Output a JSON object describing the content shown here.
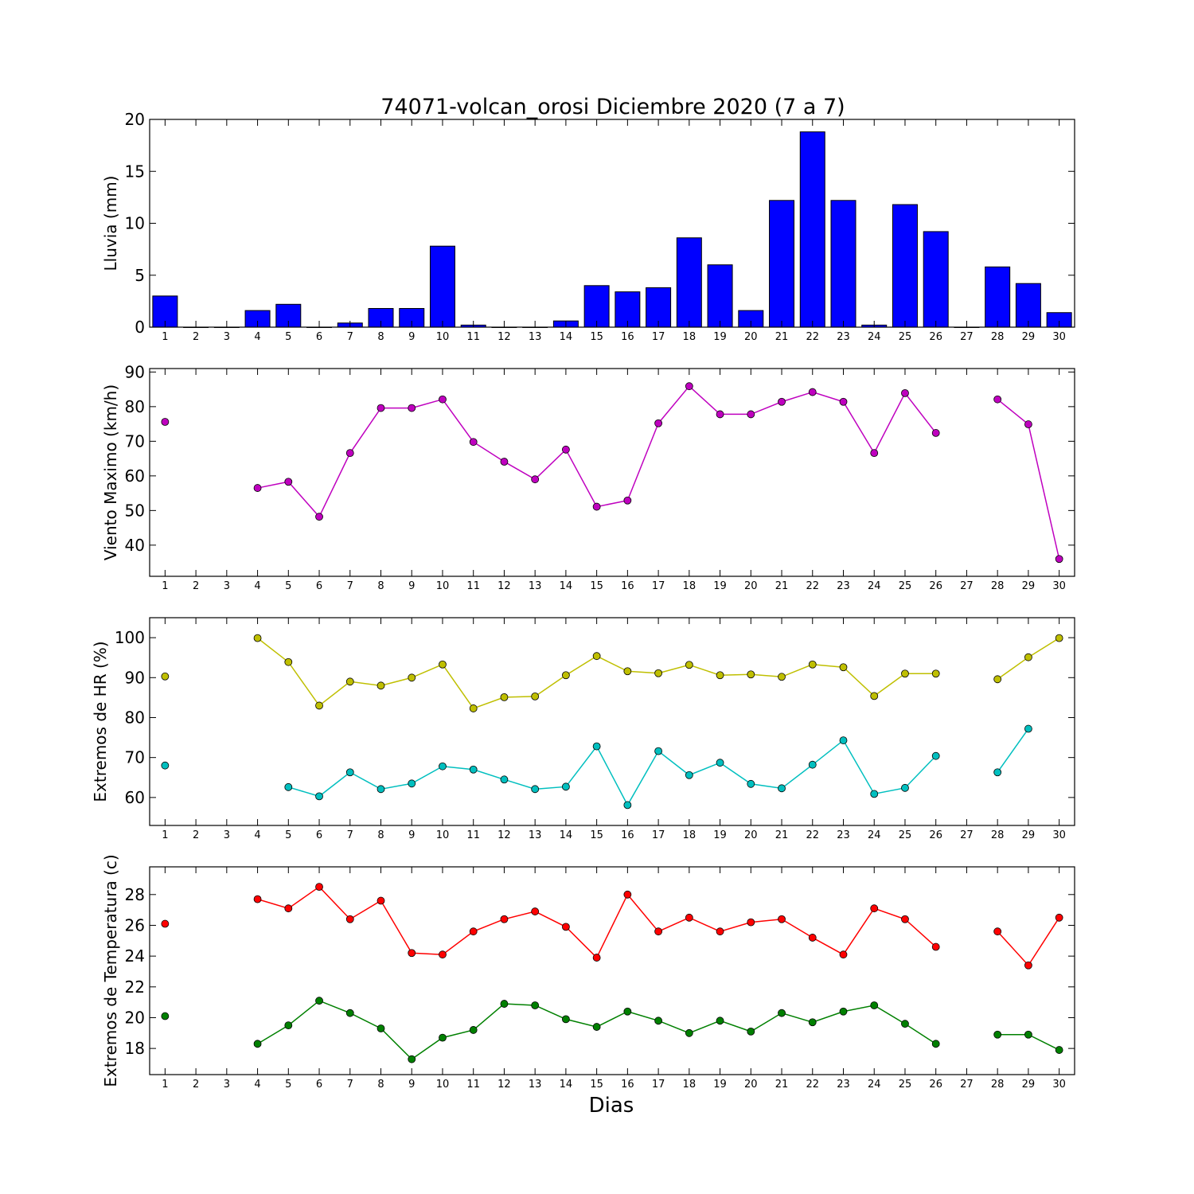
{
  "title": "74071-volcan_orosi Diciembre 2020  (7 a 7)",
  "xlabel": "Dias",
  "x_tick_labels": [
    "1",
    "2",
    "3",
    "4",
    "5",
    "6",
    "7",
    "8",
    "9",
    "10",
    "11",
    "12",
    "13",
    "14",
    "15",
    "16",
    "17",
    "18",
    "19",
    "20",
    "21",
    "22",
    "23",
    "24",
    "25",
    "26",
    "27",
    "28",
    "29",
    "30"
  ],
  "chart_data": [
    {
      "type": "bar",
      "ylabel": "Lluvia (mm)",
      "ylim": [
        0,
        20
      ],
      "yticks": [
        0,
        5,
        10,
        15,
        20
      ],
      "x": [
        1,
        2,
        3,
        4,
        5,
        6,
        7,
        8,
        9,
        10,
        11,
        12,
        13,
        14,
        15,
        16,
        17,
        18,
        19,
        20,
        21,
        22,
        23,
        24,
        25,
        26,
        27,
        28,
        29,
        30
      ],
      "series": [
        {
          "color": "#0000ff",
          "values": [
            3.0,
            0,
            0,
            1.6,
            2.2,
            0,
            0.4,
            1.8,
            1.8,
            7.8,
            0.2,
            0,
            0,
            0.6,
            4.0,
            3.4,
            3.8,
            8.6,
            6.0,
            1.6,
            12.2,
            18.8,
            12.2,
            0.2,
            11.8,
            9.2,
            0,
            5.8,
            4.2,
            1.4
          ]
        }
      ]
    },
    {
      "type": "line",
      "ylabel": "Viento Maximo (km/h)",
      "ylim": [
        31,
        91
      ],
      "yticks": [
        40,
        50,
        60,
        70,
        80,
        90
      ],
      "x": [
        1,
        2,
        3,
        4,
        5,
        6,
        7,
        8,
        9,
        10,
        11,
        12,
        13,
        14,
        15,
        16,
        17,
        18,
        19,
        20,
        21,
        22,
        23,
        24,
        25,
        26,
        27,
        28,
        29,
        30
      ],
      "series": [
        {
          "color": "#bf00bf",
          "values": [
            75.6,
            null,
            null,
            56.5,
            58.3,
            48.2,
            66.6,
            79.6,
            79.6,
            82.1,
            69.8,
            64.1,
            59.0,
            67.6,
            51.1,
            52.9,
            75.2,
            85.9,
            77.8,
            77.8,
            81.4,
            84.2,
            81.4,
            66.6,
            83.9,
            72.4,
            null,
            82.1,
            74.9,
            36.0
          ]
        }
      ]
    },
    {
      "type": "line",
      "ylabel": "Extremos de HR (%)",
      "ylim": [
        53,
        105
      ],
      "yticks": [
        60,
        70,
        80,
        90,
        100
      ],
      "x": [
        1,
        2,
        3,
        4,
        5,
        6,
        7,
        8,
        9,
        10,
        11,
        12,
        13,
        14,
        15,
        16,
        17,
        18,
        19,
        20,
        21,
        22,
        23,
        24,
        25,
        26,
        27,
        28,
        29,
        30
      ],
      "series": [
        {
          "color": "#bfbf00",
          "values": [
            90.3,
            null,
            null,
            99.9,
            93.9,
            83.0,
            89.0,
            88.0,
            90.0,
            93.3,
            82.3,
            85.1,
            85.3,
            90.6,
            95.4,
            91.6,
            91.1,
            93.2,
            90.6,
            90.8,
            90.2,
            93.3,
            92.6,
            85.4,
            91.0,
            91.0,
            null,
            89.6,
            95.1,
            99.9
          ]
        },
        {
          "color": "#00bfbf",
          "values": [
            68.0,
            null,
            null,
            null,
            62.6,
            60.3,
            66.3,
            62.1,
            63.5,
            67.8,
            67.0,
            64.5,
            62.1,
            62.7,
            72.8,
            58.1,
            71.6,
            65.6,
            68.7,
            63.4,
            62.3,
            68.2,
            74.3,
            60.9,
            62.4,
            70.4,
            null,
            66.3,
            77.2,
            null
          ]
        }
      ]
    },
    {
      "type": "line",
      "ylabel": "Extremos de Temperatura (c)",
      "ylim": [
        16.3,
        29.8
      ],
      "yticks": [
        18,
        20,
        22,
        24,
        26,
        28
      ],
      "x": [
        1,
        2,
        3,
        4,
        5,
        6,
        7,
        8,
        9,
        10,
        11,
        12,
        13,
        14,
        15,
        16,
        17,
        18,
        19,
        20,
        21,
        22,
        23,
        24,
        25,
        26,
        27,
        28,
        29,
        30
      ],
      "series": [
        {
          "color": "#ff0000",
          "values": [
            26.1,
            null,
            null,
            27.7,
            27.1,
            28.5,
            26.4,
            27.6,
            24.2,
            24.1,
            25.6,
            26.4,
            26.9,
            25.9,
            23.9,
            28.0,
            25.6,
            26.5,
            25.6,
            26.2,
            26.4,
            25.2,
            24.1,
            27.1,
            26.4,
            24.6,
            null,
            25.6,
            23.4,
            26.5
          ]
        },
        {
          "color": "#008000",
          "values": [
            20.1,
            null,
            null,
            18.3,
            19.5,
            21.1,
            20.3,
            19.3,
            17.3,
            18.7,
            19.2,
            20.9,
            20.8,
            19.9,
            19.4,
            20.4,
            19.8,
            19.0,
            19.8,
            19.1,
            20.3,
            19.7,
            20.4,
            20.8,
            19.6,
            18.3,
            null,
            18.9,
            18.9,
            17.9
          ]
        }
      ]
    }
  ]
}
